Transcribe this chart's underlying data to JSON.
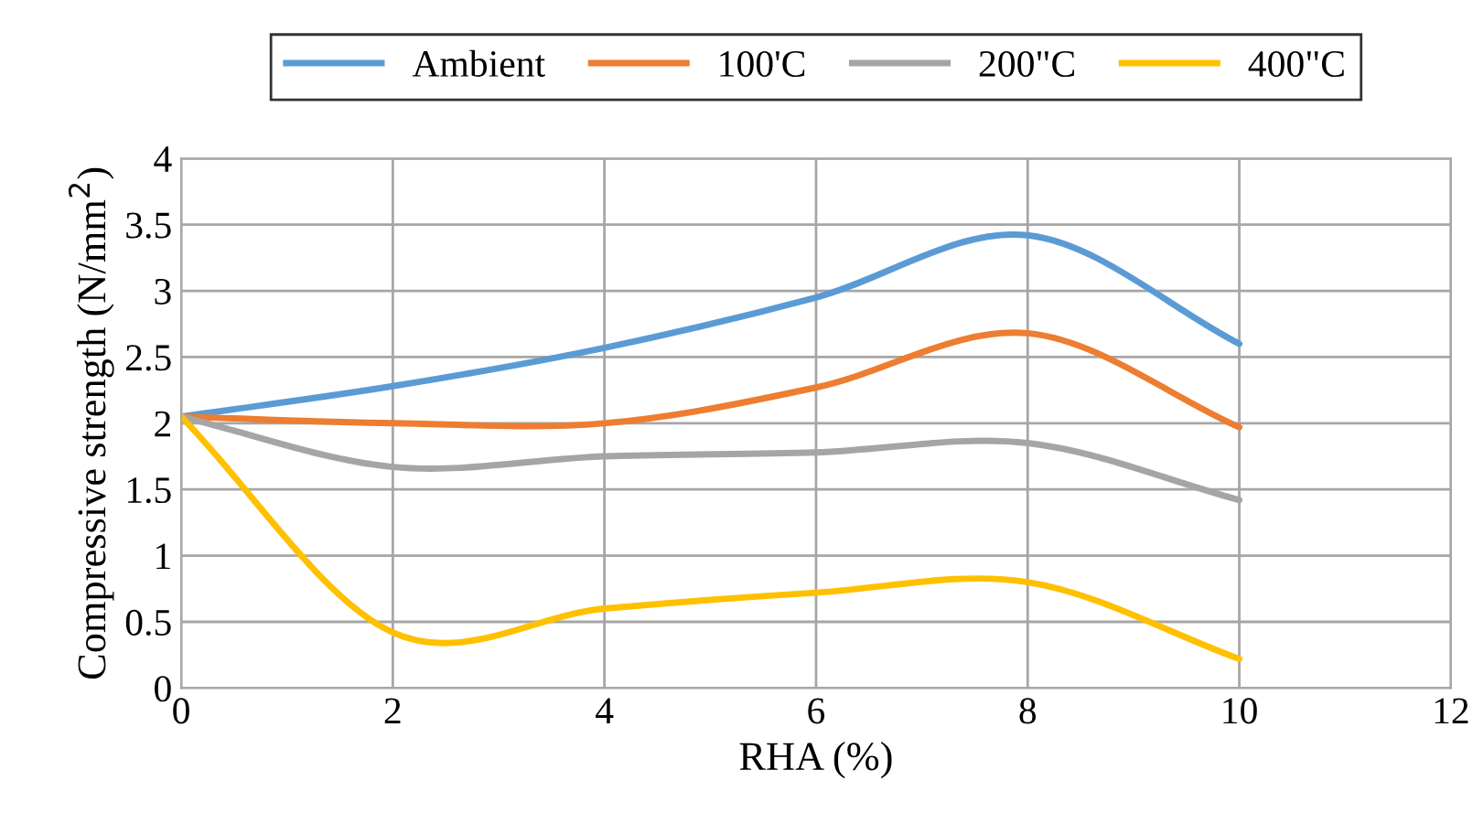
{
  "chart_data": {
    "type": "line",
    "xlabel": "RHA (%)",
    "ylabel": "Compressive strength (N/mm$^{2}$)",
    "x": [
      0,
      2,
      4,
      6,
      8,
      10
    ],
    "series": [
      {
        "name": "Ambient",
        "color": "#5b9bd5",
        "values": [
          2.05,
          2.28,
          2.57,
          2.95,
          3.42,
          2.6
        ]
      },
      {
        "name": "100'C",
        "color": "#ed7d31",
        "values": [
          2.05,
          2.0,
          2.0,
          2.27,
          2.68,
          1.97
        ]
      },
      {
        "name": "200\"C",
        "color": "#a5a5a5",
        "values": [
          2.05,
          1.67,
          1.75,
          1.78,
          1.85,
          1.42
        ]
      },
      {
        "name": "400\"C",
        "color": "#ffc000",
        "values": [
          2.05,
          0.42,
          0.6,
          0.72,
          0.8,
          0.22
        ]
      }
    ],
    "xlim": [
      0,
      12
    ],
    "xticks": [
      0,
      2,
      4,
      6,
      8,
      10,
      12
    ],
    "ylim": [
      0,
      4
    ],
    "yticks": [
      0,
      0.5,
      1,
      1.5,
      2,
      2.5,
      3,
      3.5,
      4
    ],
    "grid": true,
    "legend": "top",
    "marker": "none",
    "line_style": "solid"
  }
}
